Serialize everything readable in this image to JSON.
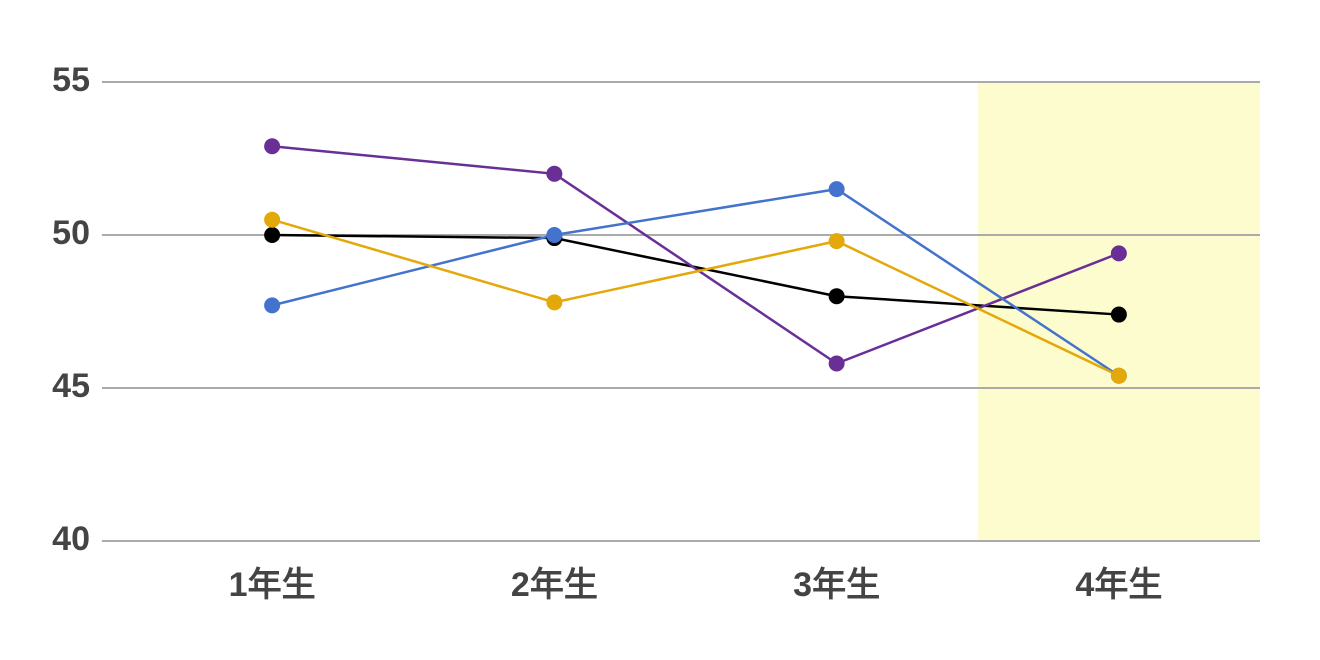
{
  "chart_data": {
    "type": "line",
    "categories": [
      "1年生",
      "2年生",
      "3年生",
      "4年生"
    ],
    "series": [
      {
        "color": "#000000",
        "values": [
          50.0,
          49.9,
          48.0,
          47.4
        ]
      },
      {
        "color": "#6a2f96",
        "values": [
          52.9,
          52.0,
          45.8,
          49.4
        ]
      },
      {
        "color": "#4373cc",
        "values": [
          47.7,
          50.0,
          51.5,
          45.4
        ]
      },
      {
        "color": "#e3a90b",
        "values": [
          50.5,
          47.8,
          49.8,
          45.4
        ]
      }
    ],
    "ylim": [
      40,
      55
    ],
    "yticks": [
      40,
      45,
      50,
      55
    ],
    "grid": true,
    "highlight_index": 3,
    "highlight_color": "#fdfccf"
  }
}
